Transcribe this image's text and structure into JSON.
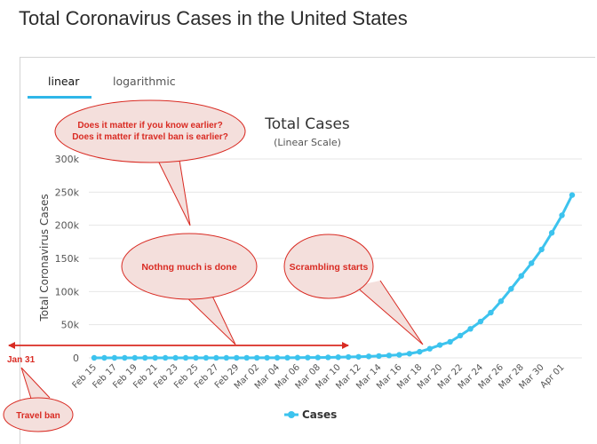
{
  "page": {
    "title": "Total Coronavirus Cases in the United States"
  },
  "tabs": [
    {
      "label": "linear",
      "active": true
    },
    {
      "label": "logarithmic",
      "active": false
    }
  ],
  "colors": {
    "series": "#3cc3ee",
    "accent": "#2fb6e8",
    "annotation": "#d92b23",
    "bubble_fill": "#f4dfdc"
  },
  "annotations": {
    "question_line1": "Does it matter if you know earlier?",
    "question_line2": "Does it matter if travel ban is earlier?",
    "nothing_done": "Nothng much is done",
    "scrambling": "Scrambling starts",
    "jan31": "Jan 31",
    "travel_ban": "Travel ban"
  },
  "chart_data": {
    "type": "line",
    "title": "Total Cases",
    "subtitle": "(Linear Scale)",
    "xlabel": "",
    "ylabel": "Total Coronavirus Cases",
    "ylim": [
      0,
      300000
    ],
    "yticks": [
      "0",
      "50k",
      "100k",
      "150k",
      "200k",
      "250k",
      "300k"
    ],
    "grid": true,
    "legend": "bottom-center",
    "x": [
      "Feb 15",
      "Feb 16",
      "Feb 17",
      "Feb 18",
      "Feb 19",
      "Feb 20",
      "Feb 21",
      "Feb 22",
      "Feb 23",
      "Feb 24",
      "Feb 25",
      "Feb 26",
      "Feb 27",
      "Feb 28",
      "Feb 29",
      "Mar 01",
      "Mar 02",
      "Mar 03",
      "Mar 04",
      "Mar 05",
      "Mar 06",
      "Mar 07",
      "Mar 08",
      "Mar 09",
      "Mar 10",
      "Mar 11",
      "Mar 12",
      "Mar 13",
      "Mar 14",
      "Mar 15",
      "Mar 16",
      "Mar 17",
      "Mar 18",
      "Mar 19",
      "Mar 20",
      "Mar 21",
      "Mar 22",
      "Mar 23",
      "Mar 24",
      "Mar 25",
      "Mar 26",
      "Mar 27",
      "Mar 28",
      "Mar 29",
      "Mar 30",
      "Mar 31",
      "Apr 01",
      "Apr 02"
    ],
    "xtick_labels": [
      "Feb 15",
      "Feb 17",
      "Feb 19",
      "Feb 21",
      "Feb 23",
      "Feb 25",
      "Feb 27",
      "Feb 29",
      "Mar 02",
      "Mar 04",
      "Mar 06",
      "Mar 08",
      "Mar 10",
      "Mar 12",
      "Mar 14",
      "Mar 16",
      "Mar 18",
      "Mar 20",
      "Mar 22",
      "Mar 24",
      "Mar 26",
      "Mar 28",
      "Mar 30",
      "Apr 01"
    ],
    "series": [
      {
        "name": "Cases",
        "values": [
          15,
          15,
          15,
          15,
          15,
          15,
          15,
          35,
          35,
          53,
          53,
          59,
          60,
          62,
          70,
          75,
          100,
          124,
          158,
          221,
          319,
          435,
          541,
          704,
          994,
          1301,
          1630,
          2183,
          2770,
          3613,
          4596,
          6344,
          9197,
          13779,
          19367,
          24192,
          33592,
          43781,
          54856,
          68211,
          85435,
          104126,
          123578,
          142735,
          163539,
          188530,
          215003,
          245573
        ]
      }
    ]
  }
}
